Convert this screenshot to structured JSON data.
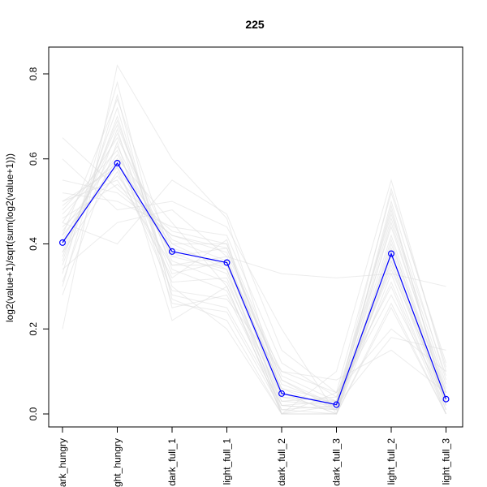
{
  "chart_data": {
    "type": "line",
    "title": "225",
    "xlabel": "",
    "ylabel": "log2(value+1)/sqrt(sum(log2(value+1)))",
    "categories": [
      "dark_hungry",
      "light_hungry",
      "dark_full_1",
      "light_full_1",
      "dark_full_2",
      "dark_full_3",
      "light_full_2",
      "light_full_3"
    ],
    "category_tick_labels": [
      "ark_hungry",
      "ght_hungry",
      "dark_full_1",
      "light_full_1",
      "dark_full_2",
      "dark_full_3",
      "light_full_2",
      "light_full_3"
    ],
    "ylim": [
      -0.03,
      0.83
    ],
    "yticks": [
      0.0,
      0.2,
      0.4,
      0.6,
      0.8
    ],
    "ytick_labels": [
      "0.0",
      "0.2",
      "0.4",
      "0.6",
      "0.8"
    ],
    "grid": false,
    "legend": "none",
    "colors": {
      "highlight": "#0000ff",
      "background_series": "#dcdcdc"
    },
    "highlight_series": {
      "values": [
        0.403,
        0.59,
        0.382,
        0.356,
        0.048,
        0.022,
        0.377,
        0.035
      ]
    },
    "background_series": [
      [
        0.2,
        0.82,
        0.6,
        0.46,
        0.05,
        0.0,
        0.36,
        0.02
      ],
      [
        0.35,
        0.7,
        0.3,
        0.2,
        0.0,
        0.1,
        0.55,
        0.1
      ],
      [
        0.4,
        0.6,
        0.45,
        0.3,
        0.0,
        0.0,
        0.45,
        0.05
      ],
      [
        0.5,
        0.55,
        0.35,
        0.35,
        0.1,
        0.05,
        0.3,
        0.0
      ],
      [
        0.45,
        0.65,
        0.4,
        0.4,
        0.05,
        0.0,
        0.4,
        0.05
      ],
      [
        0.3,
        0.75,
        0.25,
        0.28,
        0.02,
        0.03,
        0.48,
        0.03
      ],
      [
        0.55,
        0.52,
        0.42,
        0.38,
        0.08,
        0.02,
        0.35,
        0.01
      ],
      [
        0.42,
        0.58,
        0.38,
        0.33,
        0.03,
        0.02,
        0.42,
        0.04
      ],
      [
        0.48,
        0.62,
        0.33,
        0.36,
        0.06,
        0.01,
        0.38,
        0.02
      ],
      [
        0.38,
        0.68,
        0.36,
        0.31,
        0.04,
        0.03,
        0.44,
        0.06
      ],
      [
        0.44,
        0.56,
        0.4,
        0.34,
        0.0,
        0.0,
        0.33,
        0.0
      ],
      [
        0.36,
        0.72,
        0.28,
        0.25,
        0.02,
        0.01,
        0.5,
        0.08
      ],
      [
        0.52,
        0.5,
        0.44,
        0.42,
        0.12,
        0.04,
        0.28,
        0.03
      ],
      [
        0.41,
        0.63,
        0.37,
        0.39,
        0.07,
        0.02,
        0.39,
        0.05
      ],
      [
        0.47,
        0.6,
        0.31,
        0.32,
        0.01,
        0.0,
        0.41,
        0.02
      ],
      [
        0.39,
        0.66,
        0.35,
        0.37,
        0.05,
        0.02,
        0.46,
        0.07
      ],
      [
        0.33,
        0.78,
        0.27,
        0.22,
        0.0,
        0.05,
        0.52,
        0.12
      ],
      [
        0.46,
        0.54,
        0.43,
        0.4,
        0.09,
        0.03,
        0.31,
        0.01
      ],
      [
        0.43,
        0.61,
        0.39,
        0.35,
        0.04,
        0.01,
        0.37,
        0.03
      ],
      [
        0.37,
        0.69,
        0.34,
        0.29,
        0.03,
        0.04,
        0.47,
        0.09
      ],
      [
        0.34,
        0.45,
        0.48,
        0.37,
        0.33,
        0.32,
        0.33,
        0.3
      ],
      [
        0.6,
        0.48,
        0.5,
        0.44,
        0.2,
        0.0,
        0.25,
        0.0
      ],
      [
        0.28,
        0.64,
        0.22,
        0.3,
        0.0,
        0.02,
        0.18,
        0.15
      ],
      [
        0.5,
        0.58,
        0.29,
        0.27,
        0.1,
        0.08,
        0.15,
        0.05
      ],
      [
        0.45,
        0.4,
        0.55,
        0.47,
        0.15,
        0.05,
        0.2,
        0.1
      ],
      [
        0.38,
        0.57,
        0.32,
        0.41,
        0.0,
        0.0,
        0.26,
        0.0
      ],
      [
        0.42,
        0.74,
        0.37,
        0.34,
        0.02,
        0.01,
        0.49,
        0.02
      ],
      [
        0.49,
        0.59,
        0.41,
        0.36,
        0.06,
        0.03,
        0.34,
        0.04
      ],
      [
        0.31,
        0.67,
        0.26,
        0.24,
        0.01,
        0.02,
        0.53,
        0.11
      ],
      [
        0.65,
        0.53,
        0.42,
        0.39,
        0.08,
        0.01,
        0.36,
        0.02
      ]
    ]
  }
}
